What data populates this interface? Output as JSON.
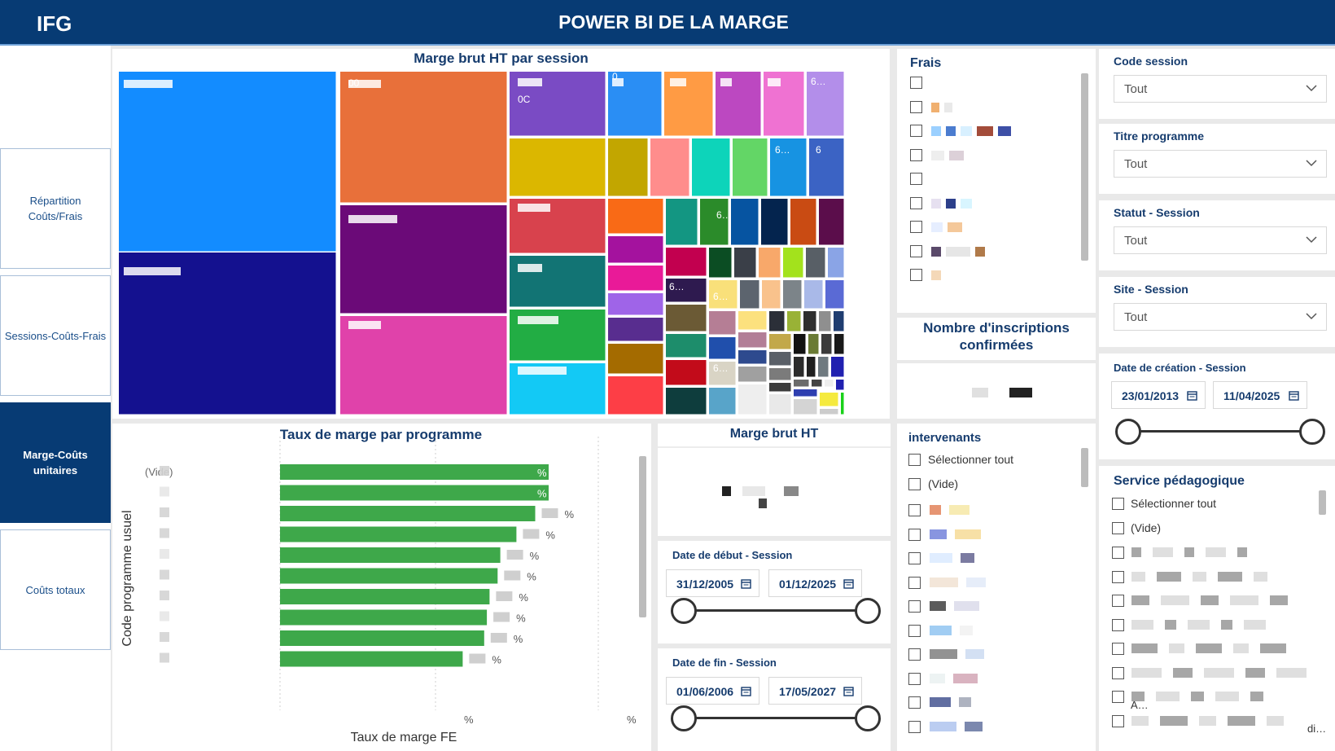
{
  "header": {
    "logo": "IFG",
    "title": "POWER BI DE LA MARGE"
  },
  "nav": {
    "items": [
      {
        "label": "Répartition Coûts/Frais",
        "active": false
      },
      {
        "label": "Sessions-Coûts-Frais",
        "active": false
      },
      {
        "label": "Marge-Coûts unitaires",
        "active": true
      },
      {
        "label": "Coûts totaux",
        "active": false
      }
    ]
  },
  "treemap": {
    "title": "Marge brut HT par session",
    "visible_labels": [
      "00",
      "0C",
      "0",
      "6…",
      "6…",
      "6…",
      "6…",
      "6…",
      "6…",
      "6"
    ]
  },
  "bar_chart": {
    "title": "Taux de marge par programme",
    "ylabel": "Code programme usuel",
    "xlabel": "Taux de marge FE",
    "first_category": "(Vide)",
    "value_labels": [
      "%",
      "%",
      "%",
      "%",
      "%",
      "%",
      "%",
      "%",
      "%",
      "%"
    ],
    "x_tick_labels": [
      "%",
      "%"
    ]
  },
  "chart_data": {
    "type": "bar",
    "orientation": "horizontal",
    "title": "Taux de marge par programme",
    "xlabel": "Taux de marge FE",
    "ylabel": "Code programme usuel",
    "values": [
      1.0,
      1.0,
      0.95,
      0.88,
      0.82,
      0.81,
      0.78,
      0.77,
      0.76,
      0.68
    ],
    "color": "#3ea84a"
  },
  "frais": {
    "title": "Frais"
  },
  "inscriptions": {
    "title_line1": "Nombre d'inscriptions",
    "title_line2": "confirmées"
  },
  "marge_card": {
    "title": "Marge brut HT"
  },
  "date_debut": {
    "title": "Date de début - Session",
    "start": "31/12/2005",
    "end": "01/12/2025"
  },
  "date_fin": {
    "title": "Date de fin - Session",
    "start": "01/06/2006",
    "end": "17/05/2027"
  },
  "intervenants": {
    "title": "intervenants",
    "select_all": "Sélectionner tout",
    "empty": "(Vide)"
  },
  "code_session": {
    "title": "Code session",
    "value": "Tout"
  },
  "titre_programme": {
    "title": "Titre programme",
    "value": "Tout"
  },
  "statut_session": {
    "title": "Statut - Session",
    "value": "Tout"
  },
  "site_session": {
    "title": "Site - Session",
    "value": "Tout"
  },
  "date_creation": {
    "title": "Date de création - Session",
    "start": "23/01/2013",
    "end": "11/04/2025"
  },
  "service": {
    "title": "Service pédagogique",
    "select_all": "Sélectionner tout",
    "empty": "(Vide)",
    "trunc1": "A…",
    "trunc2": "di…"
  },
  "colors": {
    "header": "#073b74",
    "accent": "#163c6e",
    "bar": "#3ea84a"
  }
}
